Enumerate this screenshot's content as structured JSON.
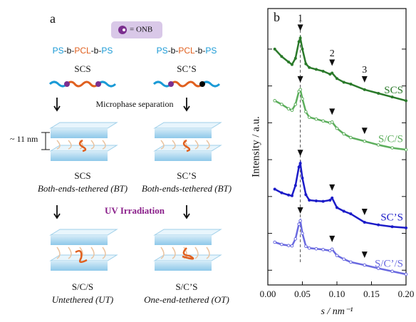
{
  "panel_a": {
    "label": "a",
    "legend": "= ONB",
    "process": "Microphase separation",
    "uv": "UV Irradiation",
    "spacing": "~ 11 nm",
    "columns": [
      {
        "polymer": [
          "PS",
          "-b-",
          "PCL",
          "-b-",
          "PS"
        ],
        "name": "SCS",
        "step1_name": "SCS",
        "step1_state": "Both-ends-tethered (BT)",
        "step2_name": "S/C/S",
        "step2_state": "Untethered (UT)"
      },
      {
        "polymer": [
          "PS",
          "-b-",
          "PCL",
          "-b-",
          "PS"
        ],
        "name": "SC’S",
        "step1_name": "SC’S",
        "step1_state": "Both-ends-tethered (BT)",
        "step2_name": "S/C’S",
        "step2_state": "One-end-tethered (OT)"
      }
    ]
  },
  "chart_data": {
    "type": "line",
    "panel_label": "b",
    "x_label": "s / nm⁻¹",
    "y_label": "Intensity / a.u.",
    "xlim": [
      0,
      0.2
    ],
    "xticks": [
      {
        "value": 0,
        "label": "0.00"
      },
      0.05,
      {
        "value": 0.1,
        "label": "0.10"
      },
      0.15,
      {
        "value": 0.2,
        "label": "0.20"
      }
    ],
    "ylim": [
      0,
      7.5
    ],
    "yticks": [
      0.4,
      1.4,
      2.4,
      3.4,
      4.4,
      5.4,
      6.4
    ],
    "log_y": true,
    "annotations": [
      {
        "x": 0.047,
        "label": "1"
      },
      {
        "x": 0.093,
        "label": "2"
      },
      {
        "x": 0.14,
        "label": "3"
      }
    ],
    "x": [
      0.01,
      0.02,
      0.03,
      0.035,
      0.04,
      0.045,
      0.047,
      0.05,
      0.055,
      0.06,
      0.07,
      0.08,
      0.09,
      0.093,
      0.1,
      0.11,
      0.12,
      0.14,
      0.16,
      0.18,
      0.2
    ],
    "series": [
      {
        "name": "SCS",
        "color": "#2b7a2b",
        "values": [
          6.4,
          6.2,
          6.05,
          5.98,
          6.15,
          6.6,
          6.7,
          6.4,
          6.0,
          5.9,
          5.85,
          5.8,
          5.72,
          5.75,
          5.6,
          5.5,
          5.45,
          5.3,
          5.2,
          5.1,
          5.0
        ]
      },
      {
        "name": "S/C/S",
        "color": "#5cae5c",
        "values": [
          5.0,
          4.9,
          4.78,
          4.74,
          4.9,
          5.25,
          5.3,
          5.05,
          4.7,
          4.55,
          4.5,
          4.45,
          4.4,
          4.42,
          4.25,
          4.1,
          4.0,
          3.9,
          3.8,
          3.72,
          3.67
        ]
      },
      {
        "name": "SC’S",
        "color": "#1c1cc8",
        "values": [
          2.6,
          2.5,
          2.44,
          2.42,
          2.7,
          3.2,
          3.3,
          2.9,
          2.45,
          2.3,
          2.28,
          2.27,
          2.3,
          2.36,
          2.1,
          2.0,
          1.93,
          1.7,
          1.63,
          1.58,
          1.55
        ]
      },
      {
        "name": "S/C’/S",
        "color": "#6a6ae0",
        "values": [
          1.16,
          1.1,
          1.07,
          1.06,
          1.25,
          1.65,
          1.74,
          1.4,
          1.05,
          1.0,
          0.98,
          0.96,
          0.93,
          0.97,
          0.8,
          0.7,
          0.62,
          0.54,
          0.45,
          0.37,
          0.29
        ]
      }
    ]
  }
}
